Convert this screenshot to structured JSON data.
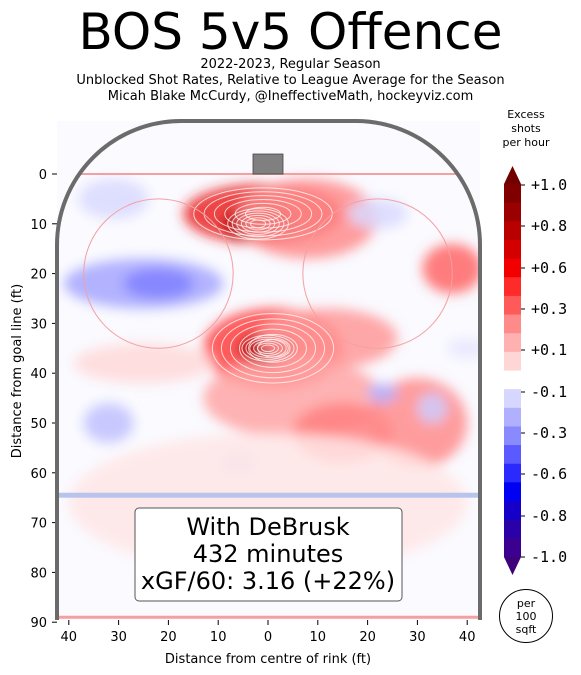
{
  "header": {
    "title": "BOS 5v5 Offence",
    "subtitle_lines": [
      "2022-2023, Regular Season",
      "Unblocked Shot Rates, Relative to League Average for the Season",
      "Micah Blake McCurdy, @IneffectiveMath, hockeyviz.com"
    ]
  },
  "legend": {
    "head_lines": [
      "Excess",
      "shots",
      "per hour"
    ],
    "ticks": [
      "+1.0",
      "+0.8",
      "+0.6",
      "+0.3",
      "+0.1",
      "-0.1",
      "-0.3",
      "-0.6",
      "-0.8",
      "-1.0"
    ],
    "tick_values": [
      1.0,
      0.8,
      0.6,
      0.3,
      0.1,
      -0.1,
      -0.3,
      -0.6,
      -0.8,
      -1.0
    ],
    "colors_top_to_bottom": [
      "#800000",
      "#9b0000",
      "#b80000",
      "#d40000",
      "#f20000",
      "#ff2a2a",
      "#ff5a5a",
      "#ff8a8a",
      "#ffb0b0",
      "#ffd6d6",
      "#ffffff",
      "#d6d6ff",
      "#b0b0ff",
      "#8a8aff",
      "#5a5aff",
      "#2a2aff",
      "#0000f2",
      "#1400c8",
      "#2a00a8",
      "#3c0090"
    ],
    "per_lines": [
      "per",
      "100",
      "sqft"
    ]
  },
  "info_box": {
    "lines": [
      "With DeBrusk",
      "432 minutes",
      "xGF/60: 3.16 (+22%)"
    ]
  },
  "chart_data": {
    "type": "heatmap",
    "title": "BOS 5v5 Offence",
    "xlabel": "Distance from centre of rink (ft)",
    "ylabel": "Distance from goal line (ft)",
    "xlim": [
      -42.5,
      42.5
    ],
    "ylim": [
      -11,
      90
    ],
    "x_ticks": [
      40,
      30,
      20,
      10,
      0,
      10,
      20,
      30,
      40
    ],
    "x_tick_values": [
      -40,
      -30,
      -20,
      -10,
      0,
      10,
      20,
      30,
      40
    ],
    "y_ticks": [
      0,
      10,
      20,
      30,
      40,
      50,
      60,
      70,
      80,
      90
    ],
    "zlim": [
      -1.0,
      1.0
    ],
    "colors": {
      "positive": "#ff0000",
      "negative": "#0000ff",
      "neutral": "#ffffff",
      "boards": "#6b6b6b"
    },
    "regions": [
      {
        "x": -1,
        "y": 8,
        "rx": 16,
        "ry": 6,
        "value": 0.85
      },
      {
        "x": -2,
        "y": 10,
        "rx": 7,
        "ry": 3.5,
        "value": 1.0
      },
      {
        "x": 8,
        "y": 9,
        "rx": 14,
        "ry": 8,
        "value": 0.45
      },
      {
        "x": 1,
        "y": 35,
        "rx": 14,
        "ry": 8,
        "value": 0.75
      },
      {
        "x": 0,
        "y": 35,
        "rx": 6,
        "ry": 3,
        "value": 1.0
      },
      {
        "x": 12,
        "y": 33,
        "rx": 14,
        "ry": 6,
        "value": 0.4
      },
      {
        "x": 5,
        "y": 45,
        "rx": 18,
        "ry": 8,
        "value": 0.35
      },
      {
        "x": 15,
        "y": 52,
        "rx": 10,
        "ry": 6,
        "value": 0.5
      },
      {
        "x": 30,
        "y": 50,
        "rx": 10,
        "ry": 9,
        "value": 0.45
      },
      {
        "x": 37,
        "y": 19,
        "rx": 6,
        "ry": 5,
        "value": 0.6
      },
      {
        "x": -25,
        "y": 38,
        "rx": 14,
        "ry": 4,
        "value": 0.15
      },
      {
        "x": -25,
        "y": 22,
        "rx": 16,
        "ry": 5,
        "value": -0.35
      },
      {
        "x": -22,
        "y": 22,
        "rx": 7,
        "ry": 3,
        "value": -0.5
      },
      {
        "x": -31,
        "y": 5,
        "rx": 7,
        "ry": 4,
        "value": -0.15
      },
      {
        "x": 22,
        "y": 8,
        "rx": 6,
        "ry": 3,
        "value": -0.15
      },
      {
        "x": -32,
        "y": 50,
        "rx": 5,
        "ry": 4,
        "value": -0.25
      },
      {
        "x": 23,
        "y": 44,
        "rx": 3,
        "ry": 2,
        "value": -0.3
      },
      {
        "x": 33,
        "y": 47,
        "rx": 3,
        "ry": 3,
        "value": -0.2
      },
      {
        "x": -6,
        "y": 58,
        "rx": 4,
        "ry": 3,
        "value": -0.15
      },
      {
        "x": 40,
        "y": 35,
        "rx": 4,
        "ry": 2,
        "value": -0.1
      },
      {
        "x": 0,
        "y": 66,
        "rx": 40,
        "ry": 14,
        "value": 0.1
      }
    ]
  }
}
